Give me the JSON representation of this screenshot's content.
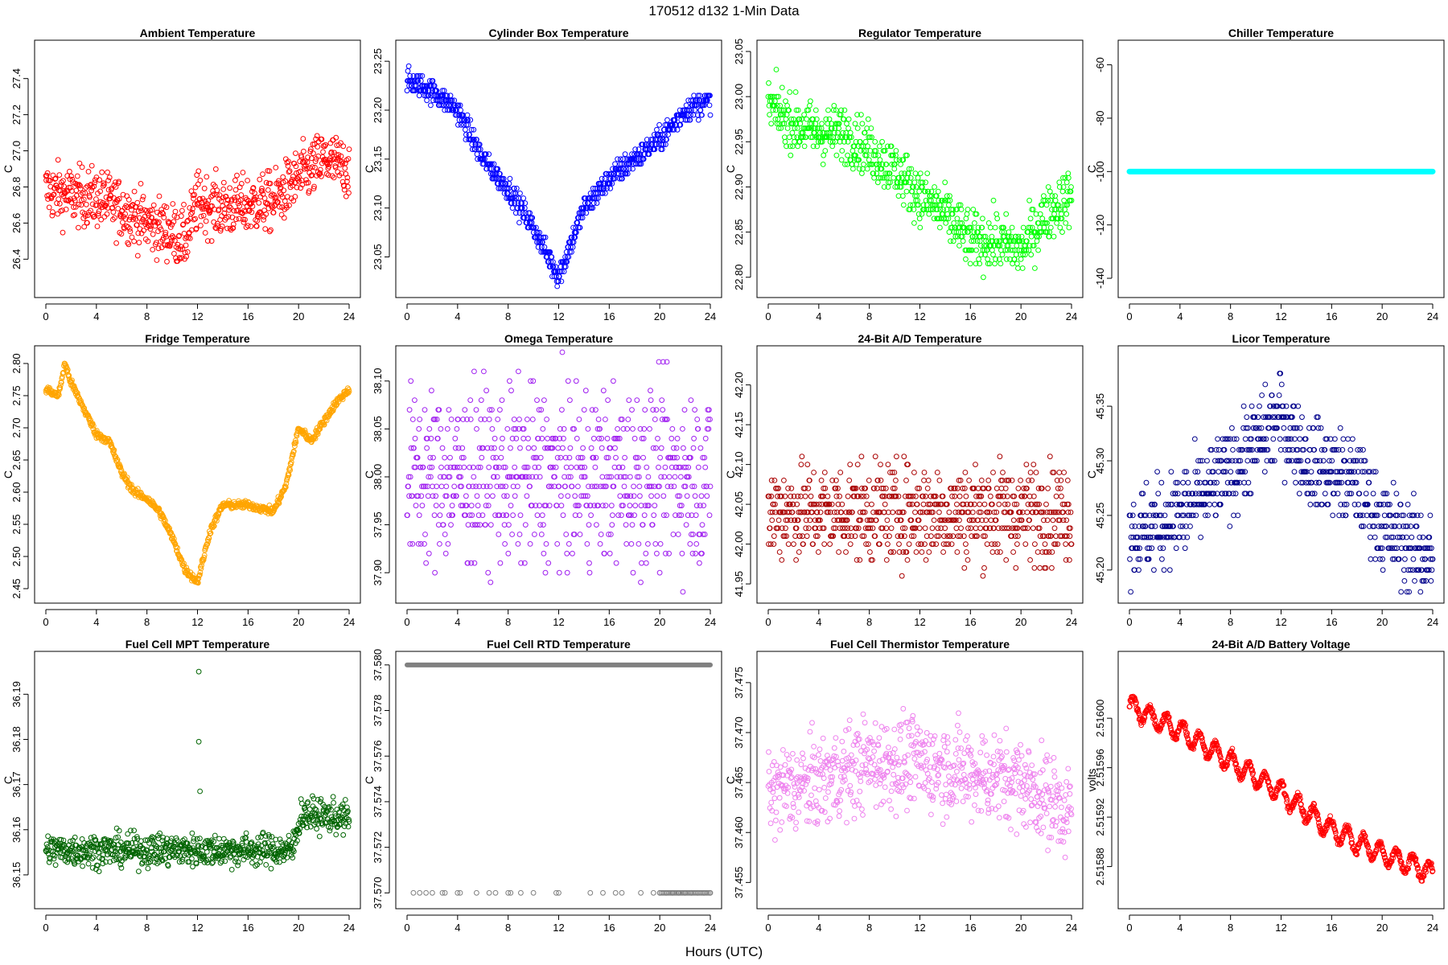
{
  "figure": {
    "title": "170512   d132   1-Min Data",
    "xlabel": "Hours (UTC)"
  },
  "chart_data": [
    {
      "type": "scatter",
      "title": "Ambient Temperature",
      "ylabel": "C",
      "color": "#ff0000",
      "xlim": [
        0,
        24
      ],
      "ylim": [
        26.25,
        27.55
      ],
      "xticks": [
        0,
        4,
        8,
        12,
        16,
        20,
        24
      ],
      "yticks": [
        26.4,
        26.6,
        26.8,
        27.0,
        27.2,
        27.4
      ],
      "yfmt": 1,
      "profile": {
        "x": [
          0,
          2,
          4,
          6,
          8,
          10,
          11,
          12,
          14,
          16,
          18,
          20,
          22,
          24
        ],
        "y": [
          26.78,
          26.75,
          26.74,
          26.68,
          26.6,
          26.55,
          26.5,
          26.72,
          26.68,
          26.7,
          26.72,
          26.85,
          26.95,
          26.9
        ]
      },
      "spread": 0.16,
      "pattern": "noise"
    },
    {
      "type": "scatter",
      "title": "Cylinder Box Temperature",
      "ylabel": "C",
      "color": "#0000ff",
      "xlim": [
        0,
        24
      ],
      "ylim": [
        23.02,
        23.26
      ],
      "xticks": [
        0,
        4,
        8,
        12,
        16,
        20,
        24
      ],
      "yticks": [
        23.05,
        23.1,
        23.15,
        23.2,
        23.25
      ],
      "yfmt": 2,
      "profile": {
        "x": [
          0,
          2,
          4,
          6,
          8,
          10,
          12,
          14,
          16,
          18,
          20,
          22,
          24
        ],
        "y": [
          23.23,
          23.22,
          23.2,
          23.15,
          23.12,
          23.08,
          23.03,
          23.1,
          23.13,
          23.15,
          23.17,
          23.2,
          23.21
        ],
        "yRaw": [
          23.23,
          23.225,
          23.2,
          23.15,
          23.115,
          23.08,
          23.03,
          23.1,
          23.13,
          23.15,
          23.17,
          23.2,
          23.21
        ]
      },
      "spread": 0.012,
      "pattern": "quant",
      "step": 0.005
    },
    {
      "type": "scatter",
      "title": "Regulator Temperature",
      "ylabel": "C",
      "color": "#00ff00",
      "xlim": [
        0,
        24
      ],
      "ylim": [
        22.79,
        23.05
      ],
      "xticks": [
        0,
        4,
        8,
        12,
        16,
        20,
        24
      ],
      "yticks": [
        22.8,
        22.85,
        22.9,
        22.95,
        23.0,
        23.05
      ],
      "yfmt": 2,
      "profile": {
        "x": [
          0,
          2,
          4,
          6,
          8,
          10,
          12,
          14,
          16,
          18,
          20,
          22,
          24
        ],
        "y": [
          22.99,
          22.97,
          22.96,
          22.96,
          22.94,
          22.92,
          22.89,
          22.87,
          22.84,
          22.84,
          22.83,
          22.87,
          22.89
        ]
      },
      "spread": 0.03,
      "pattern": "quant",
      "step": 0.005
    },
    {
      "type": "flat",
      "title": "Chiller Temperature",
      "ylabel": "C",
      "color": "#00ffff",
      "xlim": [
        0,
        24
      ],
      "ylim": [
        -143,
        -55
      ],
      "xticks": [
        0,
        4,
        8,
        12,
        16,
        20,
        24
      ],
      "yticks": [
        -140,
        -120,
        -100,
        -80,
        -60
      ],
      "yfmt": 0,
      "value": -100
    },
    {
      "type": "scatter",
      "title": "Fridge Temperature",
      "ylabel": "C",
      "color": "#ffa500",
      "xlim": [
        0,
        24
      ],
      "ylim": [
        2.445,
        2.81
      ],
      "xticks": [
        0,
        4,
        8,
        12,
        16,
        20,
        24
      ],
      "yticks": [
        2.45,
        2.5,
        2.55,
        2.6,
        2.65,
        2.7,
        2.75,
        2.8
      ],
      "yfmt": 2,
      "profile": {
        "x": [
          0,
          1,
          1.5,
          2,
          3,
          4,
          5,
          6,
          7,
          8,
          9,
          10,
          11,
          12,
          13,
          14,
          16,
          18,
          19,
          20,
          21,
          22,
          23,
          24
        ],
        "y": [
          2.76,
          2.75,
          2.8,
          2.77,
          2.73,
          2.69,
          2.68,
          2.63,
          2.6,
          2.59,
          2.57,
          2.53,
          2.48,
          2.46,
          2.54,
          2.58,
          2.58,
          2.57,
          2.61,
          2.7,
          2.68,
          2.71,
          2.74,
          2.76
        ]
      },
      "spread": 0.006,
      "pattern": "line"
    },
    {
      "type": "scatter",
      "title": "Omega Temperature",
      "ylabel": "C",
      "color": "#a020f0",
      "xlim": [
        0,
        24
      ],
      "ylim": [
        37.88,
        38.125
      ],
      "xticks": [
        0,
        4,
        8,
        12,
        16,
        20,
        24
      ],
      "yticks": [
        37.9,
        37.95,
        38.0,
        38.05,
        38.1
      ],
      "yfmt": 2,
      "profile": {
        "x": [
          0,
          24
        ],
        "y": [
          38.0,
          38.0
        ]
      },
      "spread": 0.09,
      "pattern": "quant",
      "step": 0.01
    },
    {
      "type": "scatter",
      "title": "24-Bit A/D Temperature",
      "ylabel": "C",
      "color": "#aa0000",
      "xlim": [
        0,
        24
      ],
      "ylim": [
        41.94,
        42.235
      ],
      "xticks": [
        0,
        4,
        8,
        12,
        16,
        20,
        24
      ],
      "yticks": [
        41.95,
        42.0,
        42.05,
        42.1,
        42.15,
        42.2
      ],
      "yfmt": 2,
      "profile": {
        "x": [
          0,
          24
        ],
        "y": [
          42.04,
          42.04
        ]
      },
      "spread": 0.06,
      "pattern": "quant",
      "step": 0.01
    },
    {
      "type": "scatter",
      "title": "Licor Temperature",
      "ylabel": "C",
      "color": "#00008b",
      "xlim": [
        0,
        24
      ],
      "ylim": [
        45.18,
        45.395
      ],
      "xticks": [
        0,
        4,
        8,
        12,
        16,
        20,
        24
      ],
      "yticks": [
        45.2,
        45.25,
        45.3,
        45.35
      ],
      "yfmt": 2,
      "profile": {
        "x": [
          0,
          4,
          8,
          12,
          14,
          18,
          20,
          24
        ],
        "y": [
          45.23,
          45.25,
          45.29,
          45.34,
          45.3,
          45.28,
          45.24,
          45.21
        ]
      },
      "spread": 0.04,
      "pattern": "quant",
      "step": 0.01
    },
    {
      "type": "scatter",
      "title": "Fuel Cell MPT Temperature",
      "ylabel": "C",
      "color": "#006400",
      "xlim": [
        0,
        24
      ],
      "ylim": [
        36.145,
        36.197
      ],
      "xticks": [
        0,
        4,
        8,
        12,
        16,
        20,
        24
      ],
      "yticks": [
        36.15,
        36.16,
        36.17,
        36.18,
        36.19
      ],
      "yfmt": 2,
      "profile": {
        "x": [
          0,
          19.5,
          20.2,
          24
        ],
        "y": [
          36.1555,
          36.1555,
          36.1635,
          36.1625
        ]
      },
      "spread": 0.0035,
      "pattern": "noise",
      "extras": [
        [
          12.1,
          36.195
        ],
        [
          12.1,
          36.1795
        ],
        [
          12.2,
          36.1685
        ]
      ]
    },
    {
      "type": "rtd",
      "title": "Fuel Cell RTD Temperature",
      "ylabel": "C",
      "color": "#808080",
      "xlim": [
        0,
        24
      ],
      "ylim": [
        37.5698,
        37.5801
      ],
      "xticks": [
        0,
        4,
        8,
        12,
        16,
        20,
        24
      ],
      "yticks": [
        37.57,
        37.572,
        37.574,
        37.576,
        37.578,
        37.58
      ],
      "yfmt": 3,
      "upper": 37.58,
      "lower": 37.57,
      "lowerX": [
        0.5,
        1,
        1.5,
        2,
        2.8,
        3,
        4,
        4.2,
        5.5,
        6.5,
        7,
        8,
        8.2,
        9,
        10,
        11.8,
        12,
        14.5,
        15.5,
        16.5,
        17,
        18.5,
        19.5,
        20,
        20.5,
        21,
        21.5,
        22,
        22.5,
        23,
        23.5,
        24
      ]
    },
    {
      "type": "scatter",
      "title": "Fuel Cell Thermistor Temperature",
      "ylabel": "C",
      "color": "#ee82ee",
      "xlim": [
        0,
        24
      ],
      "ylim": [
        37.4535,
        37.477
      ],
      "xticks": [
        0,
        4,
        8,
        12,
        16,
        20,
        24
      ],
      "yticks": [
        37.455,
        37.46,
        37.465,
        37.47,
        37.475
      ],
      "yfmt": 3,
      "profile": {
        "x": [
          0,
          4,
          8,
          12,
          16,
          20,
          24
        ],
        "y": [
          37.464,
          37.465,
          37.467,
          37.467,
          37.466,
          37.465,
          37.462
        ]
      },
      "spread": 0.0045,
      "pattern": "noise"
    },
    {
      "type": "scatter",
      "title": "24-Bit A/D Battery Voltage",
      "ylabel": "volts",
      "color": "#ff0000",
      "xlim": [
        0,
        24
      ],
      "ylim": [
        2.515855,
        2.516045
      ],
      "xticks": [
        0,
        4,
        8,
        12,
        16,
        20,
        24
      ],
      "yticks": [
        2.51588,
        2.51592,
        2.51596,
        2.516
      ],
      "yfmt": 5,
      "profile": {
        "x": [
          0,
          4,
          8,
          12,
          16,
          20,
          24
        ],
        "y": [
          2.51601,
          2.51599,
          2.515965,
          2.51594,
          2.51591,
          2.51589,
          2.515875
        ]
      },
      "spread": 3e-06,
      "pattern": "wave",
      "amp": 8e-06
    }
  ]
}
